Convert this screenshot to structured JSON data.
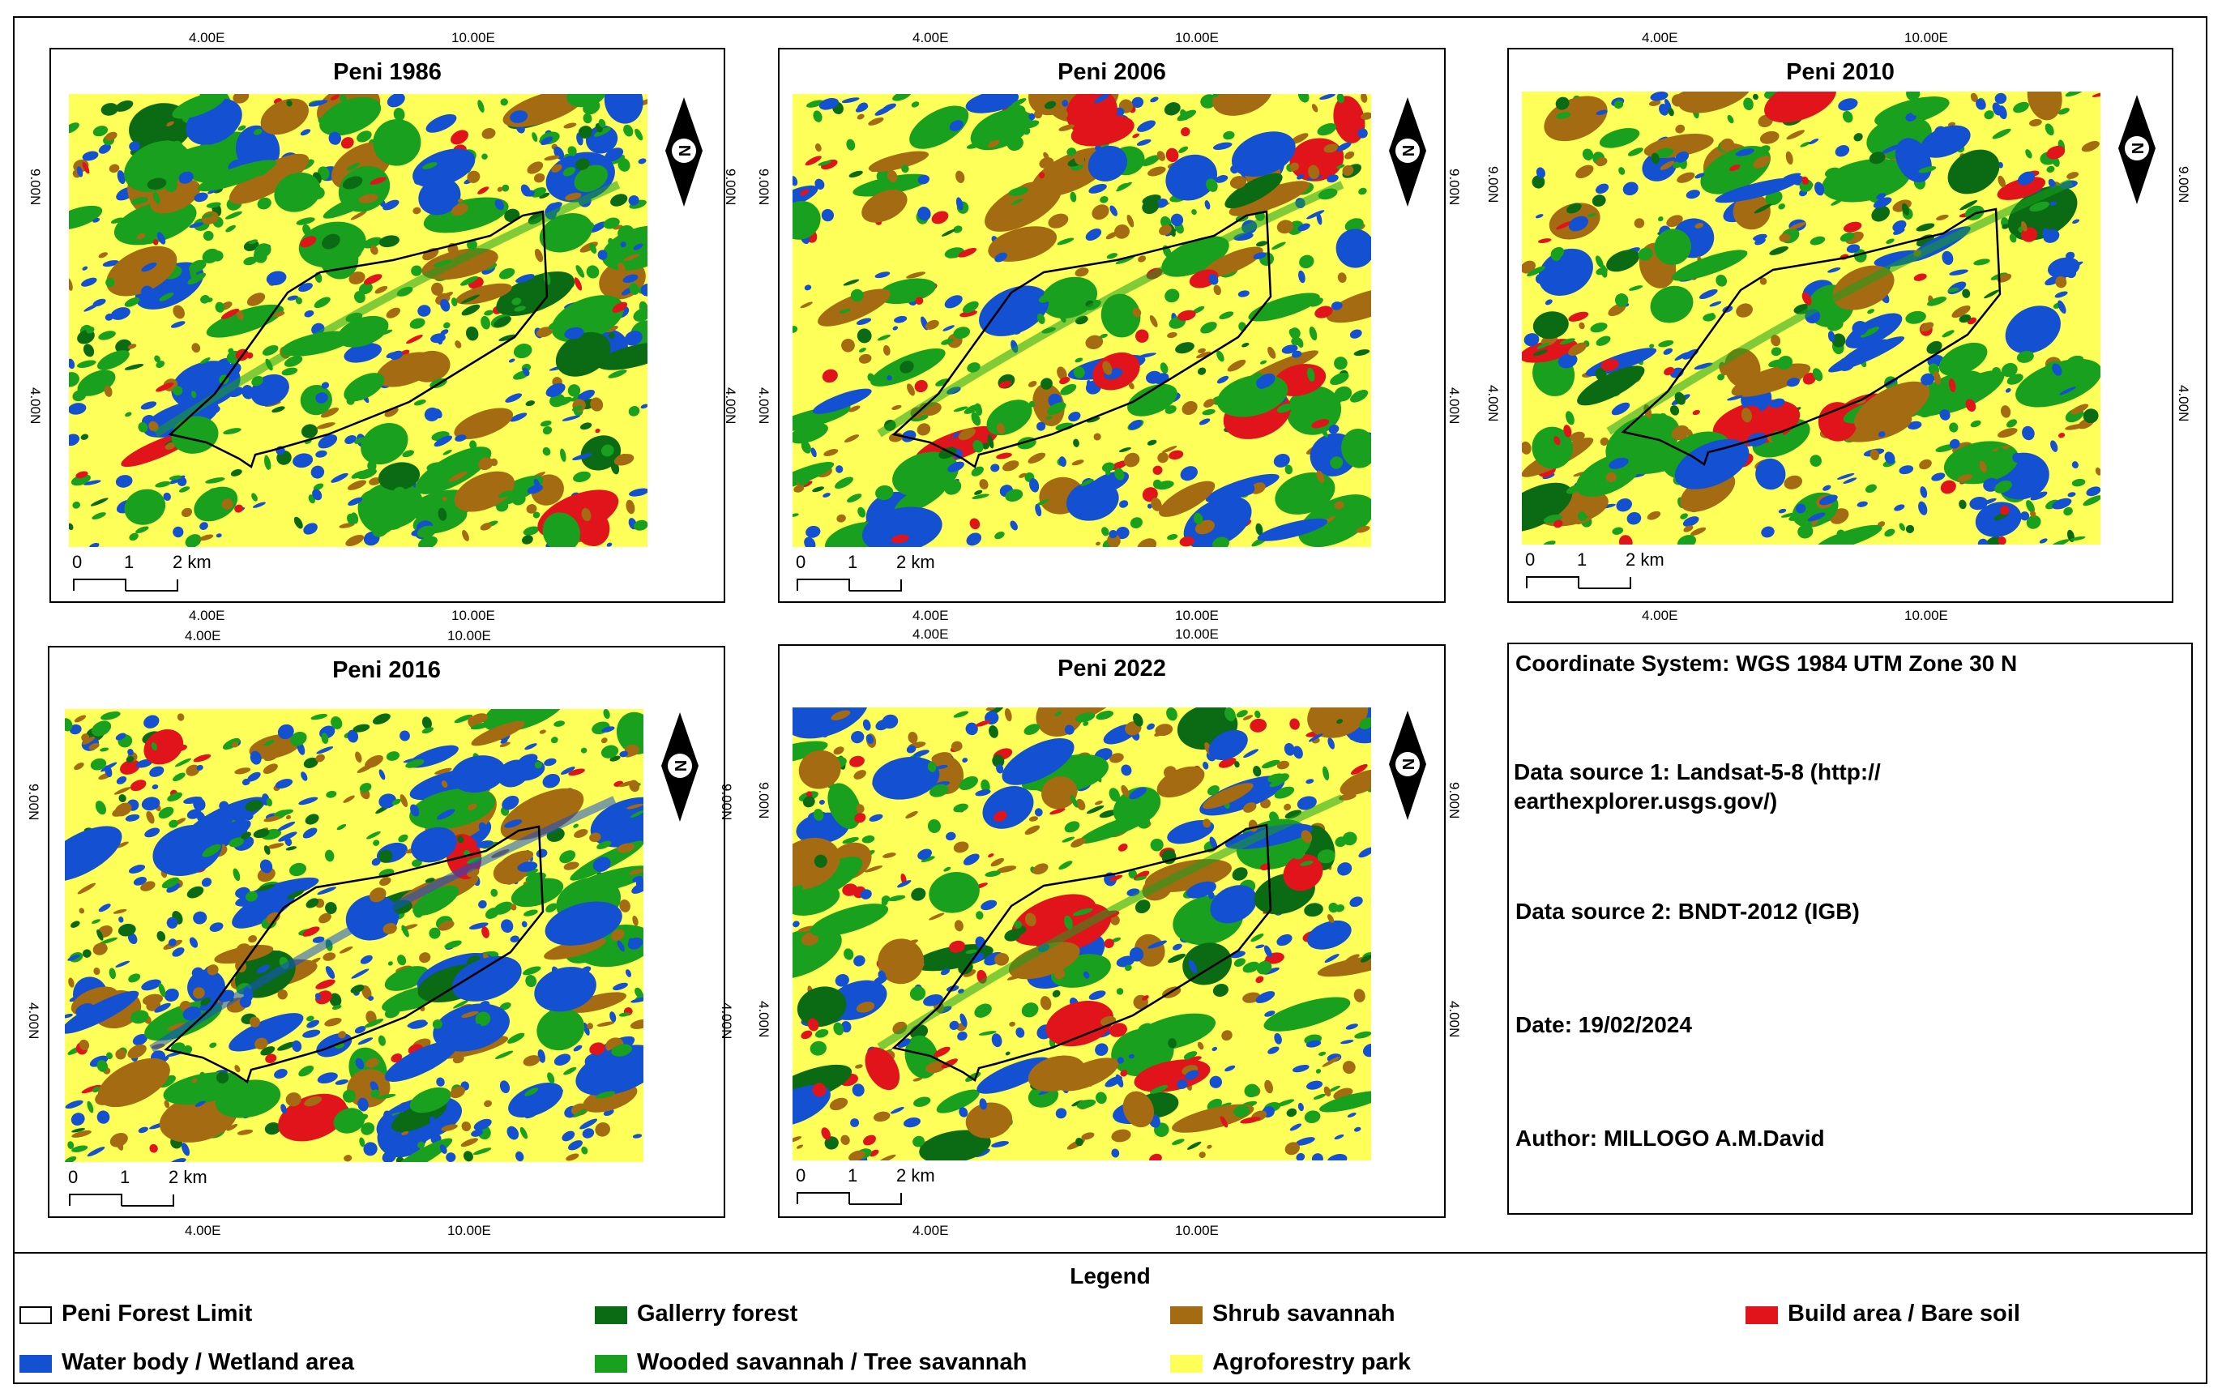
{
  "panels": [
    {
      "title": "Peni 1986"
    },
    {
      "title": "Peni 2006"
    },
    {
      "title": "Peni 2010"
    },
    {
      "title": "Peni 2016"
    },
    {
      "title": "Peni 2022"
    }
  ],
  "axis": {
    "lon_ticks": [
      "4.00E",
      "10.00E"
    ],
    "lat_ticks": [
      "9.00N",
      "4.00N"
    ]
  },
  "scale_bar": {
    "labels": [
      "0",
      "1",
      "2 km"
    ]
  },
  "north_arrow": {
    "label": "N"
  },
  "info": {
    "coordinate_system": "Coordinate System: WGS 1984 UTM Zone 30 N",
    "source1": "Data source 1: Landsat-5-8 (http://\nearthexplorer.usgs.gov/)",
    "source2": "Data source 2: BNDT-2012 (IGB)",
    "date": "Date: 19/02/2024",
    "author": "Author: MILLOGO A.M.David"
  },
  "legend": {
    "title": "Legend",
    "items": [
      {
        "label": "Peni Forest Limit",
        "color": "#ffffff"
      },
      {
        "label": "Gallerry forest",
        "color": "#0a6b14"
      },
      {
        "label": "Shrub savannah",
        "color": "#a56b12"
      },
      {
        "label": "Build area / Bare soil",
        "color": "#e0141a"
      },
      {
        "label": "Water body / Wetland area",
        "color": "#1450d2"
      },
      {
        "label": "Wooded savannah / Tree savannah",
        "color": "#19a01e"
      },
      {
        "label": "Agroforestry park",
        "color": "#ffff5a"
      }
    ]
  }
}
